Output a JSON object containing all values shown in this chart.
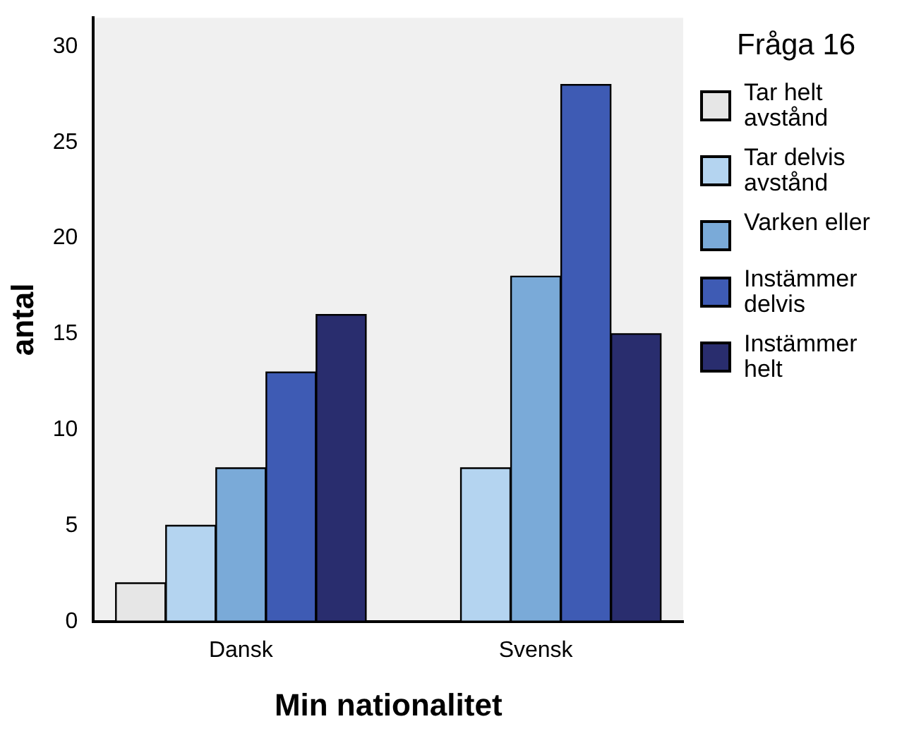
{
  "chart_data": {
    "type": "bar",
    "xlabel": "Min nationalitet",
    "ylabel": "antal",
    "legend_title": "Fråga 16",
    "legend": "right",
    "grid": false,
    "categories": [
      "Dansk",
      "Svensk"
    ],
    "ylim": [
      0,
      31.5
    ],
    "yticks": [
      0,
      5,
      10,
      15,
      20,
      25,
      30
    ],
    "series": [
      {
        "name": "Tar helt avstånd",
        "color": "#e6e6e6",
        "values": [
          2,
          0
        ]
      },
      {
        "name": "Tar delvis avstånd",
        "color": "#b4d4f0",
        "values": [
          5,
          8
        ]
      },
      {
        "name": "Varken eller",
        "color": "#7aaad8",
        "values": [
          8,
          18
        ]
      },
      {
        "name": "Instämmer delvis",
        "color": "#3e5bb4",
        "values": [
          13,
          28
        ]
      },
      {
        "name": "Instämmer helt",
        "color": "#292d6e",
        "values": [
          16,
          15
        ]
      }
    ]
  }
}
